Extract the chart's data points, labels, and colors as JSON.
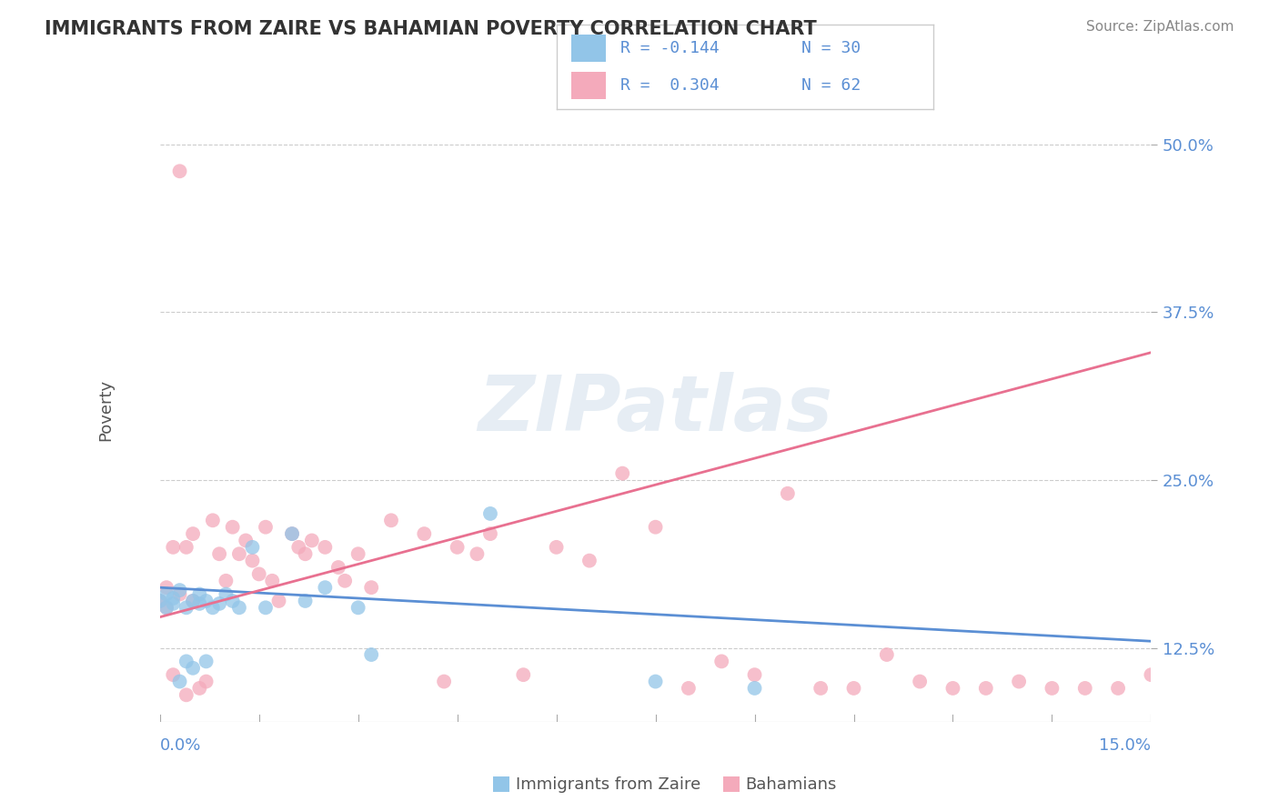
{
  "title": "IMMIGRANTS FROM ZAIRE VS BAHAMIAN POVERTY CORRELATION CHART",
  "source": "Source: ZipAtlas.com",
  "ylabel": "Poverty",
  "ytick_labels": [
    "12.5%",
    "25.0%",
    "37.5%",
    "50.0%"
  ],
  "ytick_values": [
    0.125,
    0.25,
    0.375,
    0.5
  ],
  "xlim": [
    0.0,
    0.15
  ],
  "ylim": [
    0.07,
    0.535
  ],
  "legend_label_blue": "Immigrants from Zaire",
  "legend_label_pink": "Bahamians",
  "blue_color": "#92C5E8",
  "pink_color": "#F4AABB",
  "blue_line_color": "#5B8FD4",
  "pink_line_color": "#E87090",
  "watermark": "ZIPatlas",
  "blue_scatter_x": [
    0.0,
    0.001,
    0.001,
    0.002,
    0.002,
    0.003,
    0.003,
    0.004,
    0.004,
    0.005,
    0.005,
    0.006,
    0.006,
    0.007,
    0.007,
    0.008,
    0.009,
    0.01,
    0.011,
    0.012,
    0.014,
    0.016,
    0.02,
    0.022,
    0.025,
    0.03,
    0.032,
    0.05,
    0.075,
    0.09
  ],
  "blue_scatter_y": [
    0.16,
    0.155,
    0.165,
    0.158,
    0.162,
    0.1,
    0.168,
    0.155,
    0.115,
    0.16,
    0.11,
    0.158,
    0.165,
    0.16,
    0.115,
    0.155,
    0.158,
    0.165,
    0.16,
    0.155,
    0.2,
    0.155,
    0.21,
    0.16,
    0.17,
    0.155,
    0.12,
    0.225,
    0.1,
    0.095
  ],
  "pink_scatter_x": [
    0.0,
    0.001,
    0.001,
    0.002,
    0.002,
    0.003,
    0.003,
    0.004,
    0.004,
    0.005,
    0.005,
    0.006,
    0.007,
    0.008,
    0.009,
    0.01,
    0.011,
    0.012,
    0.013,
    0.014,
    0.015,
    0.016,
    0.017,
    0.018,
    0.02,
    0.021,
    0.022,
    0.023,
    0.025,
    0.027,
    0.028,
    0.03,
    0.032,
    0.035,
    0.04,
    0.043,
    0.045,
    0.048,
    0.05,
    0.055,
    0.06,
    0.065,
    0.07,
    0.075,
    0.08,
    0.085,
    0.09,
    0.095,
    0.1,
    0.105,
    0.11,
    0.115,
    0.12,
    0.125,
    0.13,
    0.135,
    0.14,
    0.145,
    0.15,
    0.155,
    0.158,
    0.16
  ],
  "pink_scatter_y": [
    0.16,
    0.155,
    0.17,
    0.105,
    0.2,
    0.48,
    0.165,
    0.09,
    0.2,
    0.21,
    0.16,
    0.095,
    0.1,
    0.22,
    0.195,
    0.175,
    0.215,
    0.195,
    0.205,
    0.19,
    0.18,
    0.215,
    0.175,
    0.16,
    0.21,
    0.2,
    0.195,
    0.205,
    0.2,
    0.185,
    0.175,
    0.195,
    0.17,
    0.22,
    0.21,
    0.1,
    0.2,
    0.195,
    0.21,
    0.105,
    0.2,
    0.19,
    0.255,
    0.215,
    0.095,
    0.115,
    0.105,
    0.24,
    0.095,
    0.095,
    0.12,
    0.1,
    0.095,
    0.095,
    0.1,
    0.095,
    0.095,
    0.095,
    0.105,
    0.1,
    0.09,
    0.095
  ],
  "blue_trend_x": [
    0.0,
    0.15
  ],
  "blue_trend_y": [
    0.17,
    0.13
  ],
  "pink_trend_x": [
    0.0,
    0.15
  ],
  "pink_trend_y": [
    0.148,
    0.345
  ]
}
